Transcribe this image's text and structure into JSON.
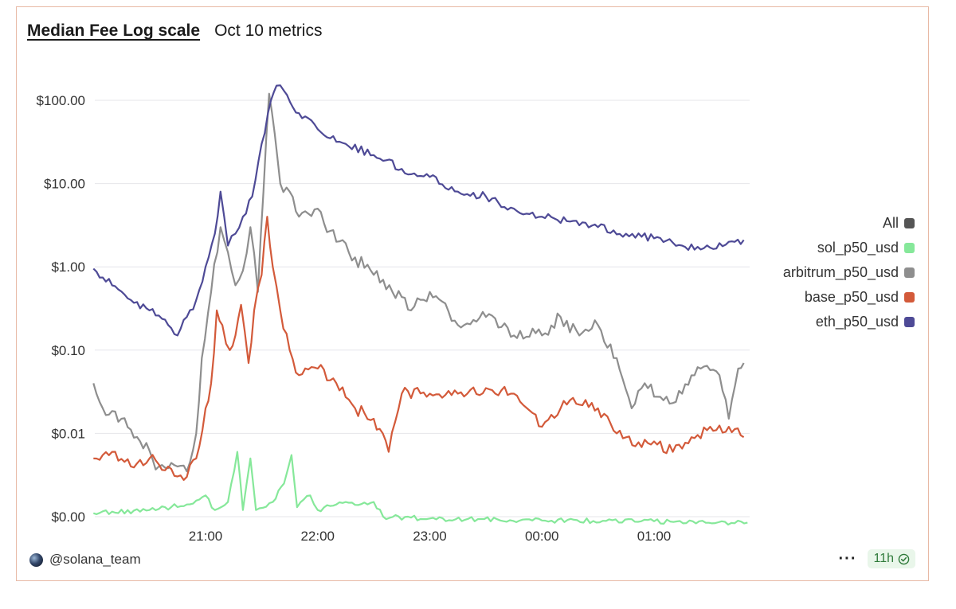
{
  "header": {
    "title": "Median Fee Log scale",
    "subtitle": "Oct 10 metrics"
  },
  "footer": {
    "handle": "@solana_team",
    "menu_label": "···",
    "age_badge": "11h"
  },
  "icons": {
    "avatar": "avatar-icon",
    "menu": "more-icon",
    "verified": "check-circle-icon"
  },
  "colors": {
    "sol": "#86e89a",
    "arbitrum": "#8e8e8e",
    "base": "#d35a3a",
    "eth": "#4e4a96",
    "all": "#555555"
  },
  "legend": [
    {
      "label": "All",
      "color": "#555555"
    },
    {
      "label": "sol_p50_usd",
      "color": "#86e89a"
    },
    {
      "label": "arbitrum_p50_usd",
      "color": "#8e8e8e"
    },
    {
      "label": "base_p50_usd",
      "color": "#d35a3a"
    },
    {
      "label": "eth_p50_usd",
      "color": "#4e4a96"
    }
  ],
  "chart_data": {
    "type": "line",
    "y_scale": "log",
    "y_ticks": [
      {
        "label": "$100.00",
        "value": 100
      },
      {
        "label": "$10.00",
        "value": 10
      },
      {
        "label": "$1.00",
        "value": 1
      },
      {
        "label": "$0.10",
        "value": 0.1
      },
      {
        "label": "$0.01",
        "value": 0.01
      },
      {
        "label": "$0.00",
        "value": 0.001
      }
    ],
    "x_ticks": [
      "21:00",
      "22:00",
      "23:00",
      "00:00",
      "01:00"
    ],
    "x_range": [
      "20:00",
      "01:50"
    ],
    "grid": true,
    "legend_position": "right",
    "series": [
      {
        "name": "sol_p50_usd",
        "color": "#86e89a",
        "points": [
          [
            "20:00",
            0.0011
          ],
          [
            "20:30",
            0.0012
          ],
          [
            "20:50",
            0.0014
          ],
          [
            "21:00",
            0.0018
          ],
          [
            "21:05",
            0.0012
          ],
          [
            "21:12",
            0.0015
          ],
          [
            "21:17",
            0.006
          ],
          [
            "21:20",
            0.0012
          ],
          [
            "21:24",
            0.005
          ],
          [
            "21:27",
            0.0012
          ],
          [
            "21:36",
            0.0015
          ],
          [
            "21:42",
            0.0025
          ],
          [
            "21:46",
            0.0055
          ],
          [
            "21:49",
            0.0013
          ],
          [
            "21:56",
            0.0018
          ],
          [
            "22:00",
            0.0012
          ],
          [
            "22:10",
            0.0014
          ],
          [
            "22:30",
            0.0015
          ],
          [
            "22:35",
            0.001
          ],
          [
            "23:00",
            0.00095
          ],
          [
            "00:00",
            0.0009
          ],
          [
            "01:00",
            0.00088
          ],
          [
            "01:50",
            0.00085
          ]
        ]
      },
      {
        "name": "arbitrum_p50_usd",
        "color": "#8e8e8e",
        "points": [
          [
            "20:00",
            0.04
          ],
          [
            "20:05",
            0.02
          ],
          [
            "20:15",
            0.015
          ],
          [
            "20:25",
            0.008
          ],
          [
            "20:35",
            0.004
          ],
          [
            "20:45",
            0.004
          ],
          [
            "20:50",
            0.0035
          ],
          [
            "20:55",
            0.01
          ],
          [
            "20:58",
            0.08
          ],
          [
            "21:03",
            0.5
          ],
          [
            "21:08",
            3.0
          ],
          [
            "21:12",
            1.5
          ],
          [
            "21:16",
            0.6
          ],
          [
            "21:20",
            0.9
          ],
          [
            "21:24",
            3.0
          ],
          [
            "21:28",
            0.5
          ],
          [
            "21:31",
            8.0
          ],
          [
            "21:34",
            120
          ],
          [
            "21:37",
            40
          ],
          [
            "21:40",
            10
          ],
          [
            "21:45",
            8
          ],
          [
            "21:50",
            4
          ],
          [
            "22:00",
            5
          ],
          [
            "22:10",
            2
          ],
          [
            "22:20",
            1.3
          ],
          [
            "22:30",
            0.8
          ],
          [
            "22:40",
            0.5
          ],
          [
            "22:50",
            0.3
          ],
          [
            "23:00",
            0.5
          ],
          [
            "23:15",
            0.2
          ],
          [
            "23:30",
            0.25
          ],
          [
            "23:45",
            0.15
          ],
          [
            "00:00",
            0.15
          ],
          [
            "00:10",
            0.25
          ],
          [
            "00:20",
            0.15
          ],
          [
            "00:30",
            0.2
          ],
          [
            "00:40",
            0.08
          ],
          [
            "00:48",
            0.02
          ],
          [
            "00:55",
            0.04
          ],
          [
            "01:05",
            0.025
          ],
          [
            "01:15",
            0.03
          ],
          [
            "01:25",
            0.06
          ],
          [
            "01:35",
            0.05
          ],
          [
            "01:40",
            0.015
          ],
          [
            "01:45",
            0.06
          ],
          [
            "01:48",
            0.07
          ]
        ]
      },
      {
        "name": "base_p50_usd",
        "color": "#d35a3a",
        "points": [
          [
            "20:00",
            0.005
          ],
          [
            "20:10",
            0.006
          ],
          [
            "20:20",
            0.004
          ],
          [
            "20:30",
            0.005
          ],
          [
            "20:40",
            0.004
          ],
          [
            "20:50",
            0.003
          ],
          [
            "20:55",
            0.005
          ],
          [
            "21:00",
            0.02
          ],
          [
            "21:03",
            0.04
          ],
          [
            "21:06",
            0.3
          ],
          [
            "21:09",
            0.2
          ],
          [
            "21:13",
            0.1
          ],
          [
            "21:16",
            0.15
          ],
          [
            "21:19",
            0.35
          ],
          [
            "21:23",
            0.07
          ],
          [
            "21:26",
            0.3
          ],
          [
            "21:30",
            0.8
          ],
          [
            "21:33",
            4.0
          ],
          [
            "21:36",
            1.0
          ],
          [
            "21:40",
            0.3
          ],
          [
            "21:45",
            0.1
          ],
          [
            "21:50",
            0.05
          ],
          [
            "22:00",
            0.06
          ],
          [
            "22:10",
            0.04
          ],
          [
            "22:20",
            0.02
          ],
          [
            "22:30",
            0.015
          ],
          [
            "22:38",
            0.006
          ],
          [
            "22:45",
            0.03
          ],
          [
            "23:00",
            0.03
          ],
          [
            "23:15",
            0.03
          ],
          [
            "23:30",
            0.035
          ],
          [
            "23:45",
            0.03
          ],
          [
            "00:00",
            0.012
          ],
          [
            "00:15",
            0.025
          ],
          [
            "00:30",
            0.02
          ],
          [
            "00:40",
            0.01
          ],
          [
            "00:50",
            0.007
          ],
          [
            "01:00",
            0.008
          ],
          [
            "01:10",
            0.006
          ],
          [
            "01:20",
            0.009
          ],
          [
            "01:30",
            0.012
          ],
          [
            "01:40",
            0.012
          ],
          [
            "01:48",
            0.009
          ]
        ]
      },
      {
        "name": "eth_p50_usd",
        "color": "#4e4a96",
        "points": [
          [
            "20:00",
            0.95
          ],
          [
            "20:10",
            0.6
          ],
          [
            "20:20",
            0.4
          ],
          [
            "20:30",
            0.3
          ],
          [
            "20:40",
            0.2
          ],
          [
            "20:45",
            0.15
          ],
          [
            "20:50",
            0.25
          ],
          [
            "20:55",
            0.4
          ],
          [
            "21:00",
            1.0
          ],
          [
            "21:05",
            2.5
          ],
          [
            "21:08",
            8.0
          ],
          [
            "21:12",
            1.8
          ],
          [
            "21:16",
            2.5
          ],
          [
            "21:20",
            4.0
          ],
          [
            "21:25",
            7.0
          ],
          [
            "21:30",
            30
          ],
          [
            "21:35",
            100
          ],
          [
            "21:38",
            150
          ],
          [
            "21:42",
            130
          ],
          [
            "21:50",
            70
          ],
          [
            "22:00",
            45
          ],
          [
            "22:15",
            30
          ],
          [
            "22:30",
            22
          ],
          [
            "22:45",
            15
          ],
          [
            "23:00",
            12
          ],
          [
            "23:15",
            8
          ],
          [
            "23:30",
            7
          ],
          [
            "23:45",
            5
          ],
          [
            "00:00",
            4
          ],
          [
            "00:15",
            3.5
          ],
          [
            "00:30",
            3
          ],
          [
            "00:45",
            2.5
          ],
          [
            "01:00",
            2.2
          ],
          [
            "01:15",
            1.8
          ],
          [
            "01:30",
            1.7
          ],
          [
            "01:40",
            2.0
          ],
          [
            "01:48",
            2.1
          ]
        ]
      }
    ]
  }
}
